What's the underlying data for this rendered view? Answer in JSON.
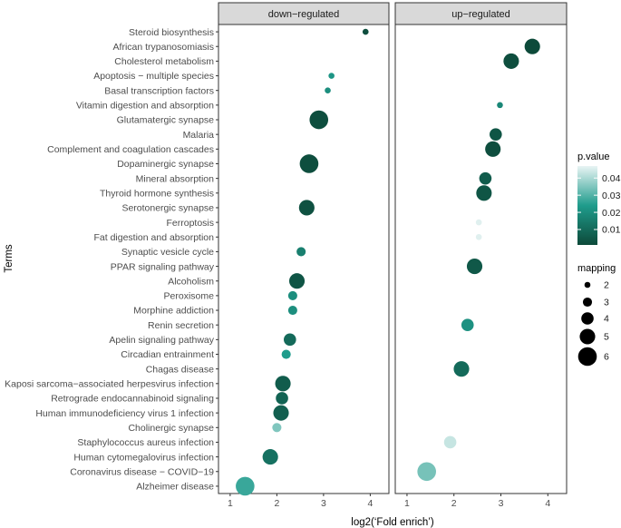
{
  "chart_data": {
    "type": "scatter",
    "xlabel": "log2(‘Fold enrich’)",
    "ylabel": "Terms",
    "xlim": [
      0.75,
      4.4
    ],
    "x_ticks": [
      1,
      2,
      3,
      4
    ],
    "panels": [
      "down−regulated",
      "up−regulated"
    ],
    "terms": [
      "Steroid biosynthesis",
      "African trypanosomiasis",
      "Cholesterol metabolism",
      "Apoptosis − multiple species",
      "Basal transcription factors",
      "Vitamin digestion and absorption",
      "Glutamatergic synapse",
      "Malaria",
      "Complement and coagulation cascades",
      "Dopaminergic synapse",
      "Mineral absorption",
      "Thyroid hormone synthesis",
      "Serotonergic synapse",
      "Ferroptosis",
      "Fat digestion and absorption",
      "Synaptic vesicle cycle",
      "PPAR signaling pathway",
      "Alcoholism",
      "Peroxisome",
      "Morphine addiction",
      "Renin secretion",
      "Apelin signaling pathway",
      "Circadian entrainment",
      "Chagas disease",
      "Kaposi sarcoma−associated herpesvirus infection",
      "Retrograde endocannabinoid signaling",
      "Human immunodeficiency virus 1 infection",
      "Cholinergic synapse",
      "Staphylococcus aureus infection",
      "Human cytomegalovirus infection",
      "Coronavirus disease − COVID−19",
      "Alzheimer disease"
    ],
    "points": [
      {
        "panel": "down−regulated",
        "term": "Steroid biosynthesis",
        "x": 3.9,
        "mapping": 2,
        "p_value": 0.002
      },
      {
        "panel": "down−regulated",
        "term": "Apoptosis − multiple species",
        "x": 3.17,
        "mapping": 2,
        "p_value": 0.022
      },
      {
        "panel": "down−regulated",
        "term": "Basal transcription factors",
        "x": 3.09,
        "mapping": 2,
        "p_value": 0.02
      },
      {
        "panel": "down−regulated",
        "term": "Glutamatergic synapse",
        "x": 2.9,
        "mapping": 6,
        "p_value": 0.002
      },
      {
        "panel": "down−regulated",
        "term": "Dopaminergic synapse",
        "x": 2.69,
        "mapping": 6,
        "p_value": 0.002
      },
      {
        "panel": "down−regulated",
        "term": "Serotonergic synapse",
        "x": 2.64,
        "mapping": 5,
        "p_value": 0.003
      },
      {
        "panel": "down−regulated",
        "term": "Synaptic vesicle cycle",
        "x": 2.52,
        "mapping": 3,
        "p_value": 0.016
      },
      {
        "panel": "down−regulated",
        "term": "Alcoholism",
        "x": 2.43,
        "mapping": 5,
        "p_value": 0.004
      },
      {
        "panel": "down−regulated",
        "term": "Peroxisome",
        "x": 2.34,
        "mapping": 3,
        "p_value": 0.02
      },
      {
        "panel": "down−regulated",
        "term": "Morphine addiction",
        "x": 2.34,
        "mapping": 3,
        "p_value": 0.02
      },
      {
        "panel": "down−regulated",
        "term": "Apelin signaling pathway",
        "x": 2.28,
        "mapping": 4,
        "p_value": 0.01
      },
      {
        "panel": "down−regulated",
        "term": "Circadian entrainment",
        "x": 2.2,
        "mapping": 3,
        "p_value": 0.024
      },
      {
        "panel": "down−regulated",
        "term": "Kaposi sarcoma−associated herpesvirus infection",
        "x": 2.13,
        "mapping": 5,
        "p_value": 0.006
      },
      {
        "panel": "down−regulated",
        "term": "Retrograde endocannabinoid signaling",
        "x": 2.11,
        "mapping": 4,
        "p_value": 0.008
      },
      {
        "panel": "down−regulated",
        "term": "Human immunodeficiency virus 1 infection",
        "x": 2.09,
        "mapping": 5,
        "p_value": 0.007
      },
      {
        "panel": "down−regulated",
        "term": "Cholinergic synapse",
        "x": 2.0,
        "mapping": 3,
        "p_value": 0.035
      },
      {
        "panel": "down−regulated",
        "term": "Human cytomegalovirus infection",
        "x": 1.86,
        "mapping": 5,
        "p_value": 0.012
      },
      {
        "panel": "down−regulated",
        "term": "Alzheimer disease",
        "x": 1.32,
        "mapping": 6,
        "p_value": 0.027
      },
      {
        "panel": "up−regulated",
        "term": "African trypanosomiasis",
        "x": 3.67,
        "mapping": 5,
        "p_value": 0.001
      },
      {
        "panel": "up−regulated",
        "term": "Cholesterol metabolism",
        "x": 3.22,
        "mapping": 5,
        "p_value": 0.002
      },
      {
        "panel": "up−regulated",
        "term": "Vitamin digestion and absorption",
        "x": 2.98,
        "mapping": 2,
        "p_value": 0.018
      },
      {
        "panel": "up−regulated",
        "term": "Malaria",
        "x": 2.89,
        "mapping": 4,
        "p_value": 0.004
      },
      {
        "panel": "up−regulated",
        "term": "Complement and coagulation cascades",
        "x": 2.83,
        "mapping": 5,
        "p_value": 0.002
      },
      {
        "panel": "up−regulated",
        "term": "Mineral absorption",
        "x": 2.67,
        "mapping": 4,
        "p_value": 0.006
      },
      {
        "panel": "up−regulated",
        "term": "Thyroid hormone synthesis",
        "x": 2.64,
        "mapping": 5,
        "p_value": 0.004
      },
      {
        "panel": "up−regulated",
        "term": "Ferroptosis",
        "x": 2.53,
        "mapping": 2,
        "p_value": 0.046
      },
      {
        "panel": "up−regulated",
        "term": "Fat digestion and absorption",
        "x": 2.53,
        "mapping": 2,
        "p_value": 0.046
      },
      {
        "panel": "up−regulated",
        "term": "PPAR signaling pathway",
        "x": 2.44,
        "mapping": 5,
        "p_value": 0.005
      },
      {
        "panel": "up−regulated",
        "term": "Renin secretion",
        "x": 2.29,
        "mapping": 4,
        "p_value": 0.021
      },
      {
        "panel": "up−regulated",
        "term": "Chagas disease",
        "x": 2.16,
        "mapping": 5,
        "p_value": 0.01
      },
      {
        "panel": "up−regulated",
        "term": "Staphylococcus aureus infection",
        "x": 1.92,
        "mapping": 4,
        "p_value": 0.043
      },
      {
        "panel": "up−regulated",
        "term": "Coronavirus disease − COVID−19",
        "x": 1.42,
        "mapping": 6,
        "p_value": 0.034
      }
    ],
    "color_legend": {
      "title": "p.value",
      "ticks": [
        0.04,
        0.03,
        0.02,
        0.01
      ],
      "tick_labels": [
        "0.04",
        "0.03",
        "0.02",
        "0.01"
      ],
      "range": [
        0.001,
        0.047
      ],
      "color_low": "#0d4a3a",
      "color_mid": "#1f9c8c",
      "color_high": "#e9f4f4"
    },
    "size_legend": {
      "title": "mapping",
      "values": [
        2,
        3,
        4,
        5,
        6
      ],
      "labels": [
        "2",
        "3",
        "4",
        "5",
        "6"
      ]
    },
    "grid": false,
    "legend_position": "right",
    "colors": {
      "strip_fill": "#d9d9d9",
      "panel_border": "#333333",
      "point_stroke": "none"
    }
  }
}
